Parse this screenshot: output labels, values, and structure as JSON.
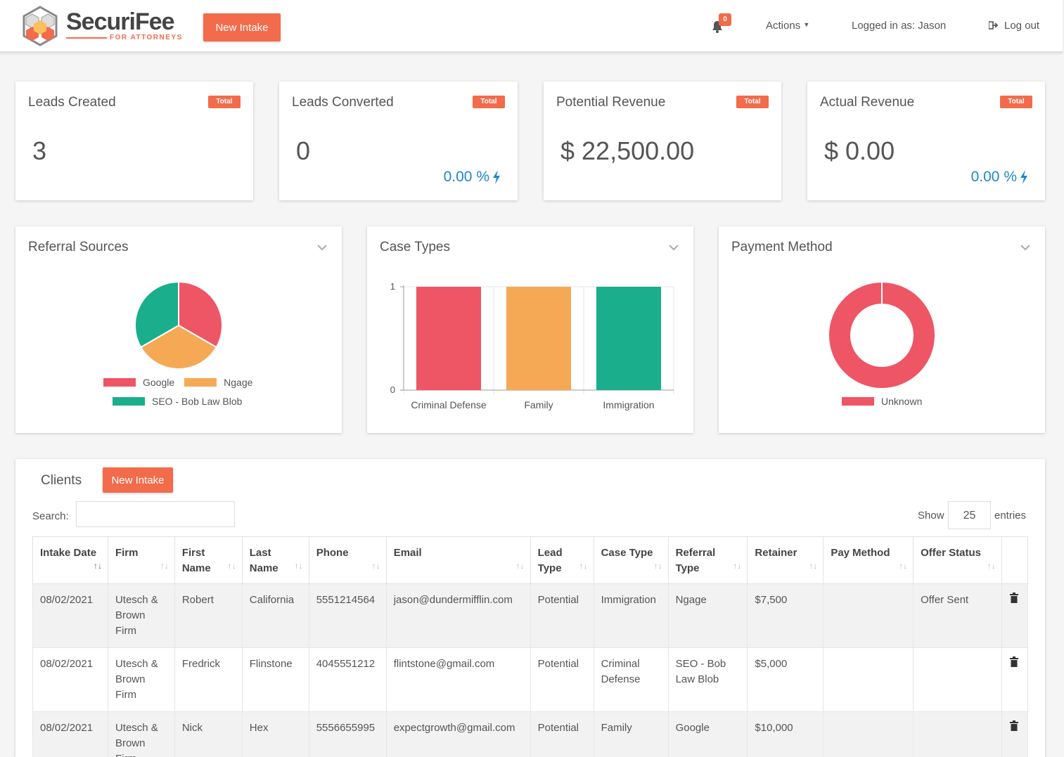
{
  "header": {
    "brand": "SecuriFee",
    "brand_sub": "FOR ATTORNEYS",
    "new_intake": "New Intake",
    "notification_count": "0",
    "actions": "Actions",
    "logged_in": "Logged in as: Jason",
    "logout": "Log out"
  },
  "stats": [
    {
      "title": "Leads Created",
      "badge": "Total",
      "value": "3",
      "pct": ""
    },
    {
      "title": "Leads Converted",
      "badge": "Total",
      "value": "0",
      "pct": "0.00 %"
    },
    {
      "title": "Potential Revenue",
      "badge": "Total",
      "value": "$ 22,500.00",
      "pct": ""
    },
    {
      "title": "Actual Revenue",
      "badge": "Total",
      "value": "$ 0.00",
      "pct": "0.00 %"
    }
  ],
  "chart_data": [
    {
      "type": "pie",
      "title": "Referral Sources",
      "categories": [
        "Google",
        "Ngage",
        "SEO - Bob Law Blob"
      ],
      "values": [
        1,
        1,
        1
      ],
      "colors": [
        "#ee5565",
        "#f5a955",
        "#1aae8c"
      ],
      "legend": "bottom"
    },
    {
      "type": "bar",
      "title": "Case Types",
      "categories": [
        "Criminal Defense",
        "Family",
        "Immigration"
      ],
      "values": [
        1,
        1,
        1
      ],
      "colors": [
        "#ee5565",
        "#f5a955",
        "#1aae8c"
      ],
      "ylim": [
        0,
        1
      ],
      "yticks": [
        "0",
        "1"
      ],
      "grid": true
    },
    {
      "type": "pie",
      "title": "Payment Method",
      "categories": [
        "Unknown"
      ],
      "values": [
        1
      ],
      "colors": [
        "#ee5565"
      ],
      "donut": true,
      "legend": "bottom"
    }
  ],
  "clients": {
    "title": "Clients",
    "new_intake": "New Intake",
    "search_label": "Search:",
    "search_value": "",
    "show_label": "Show",
    "show_value": "25",
    "entries_label": "entries",
    "columns": [
      "Intake Date",
      "Firm",
      "First Name",
      "Last Name",
      "Phone",
      "Email",
      "Lead Type",
      "Case Type",
      "Referral Type",
      "Retainer",
      "Pay Method",
      "Offer Status"
    ],
    "rows": [
      [
        "08/02/2021",
        "Utesch & Brown Firm",
        "Robert",
        "California",
        "5551214564",
        "jason@dundermifflin.com",
        "Potential",
        "Immigration",
        "Ngage",
        "$7,500",
        "",
        "Offer Sent"
      ],
      [
        "08/02/2021",
        "Utesch & Brown Firm",
        "Fredrick",
        "Flinstone",
        "4045551212",
        "flintstone@gmail.com",
        "Potential",
        "Criminal Defense",
        "SEO - Bob Law Blob",
        "$5,000",
        "",
        ""
      ],
      [
        "08/02/2021",
        "Utesch & Brown Firm",
        "Nick",
        "Hex",
        "5556655995",
        "expectgrowth@gmail.com",
        "Potential",
        "Family",
        "Google",
        "$10,000",
        "",
        ""
      ]
    ]
  }
}
